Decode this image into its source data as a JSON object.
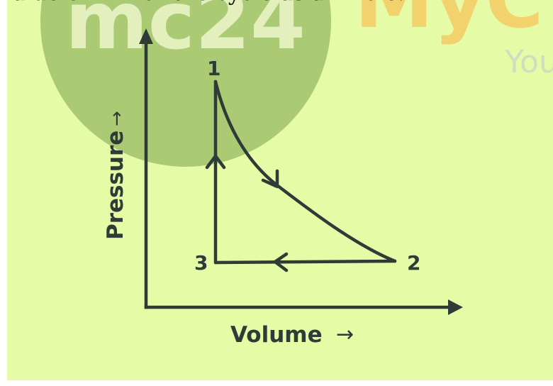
{
  "question_fragment": "value of ΔE for the cycle as a whole.",
  "watermark": {
    "logo_text": "mc24",
    "brand_text": "MyC",
    "tagline_fragment": "You"
  },
  "diagram": {
    "y_axis_label": "Pressure",
    "x_axis_label": "Volume",
    "arrow_glyph": "→",
    "points": [
      {
        "label": "1"
      },
      {
        "label": "2"
      },
      {
        "label": "3"
      }
    ]
  },
  "colors": {
    "panel_background": "#e6fba6",
    "watermark_circle": "#9fc16a",
    "watermark_logo_text": "#eef7cb",
    "watermark_brand": "#f6c85f",
    "ink": "#2f3b37"
  }
}
